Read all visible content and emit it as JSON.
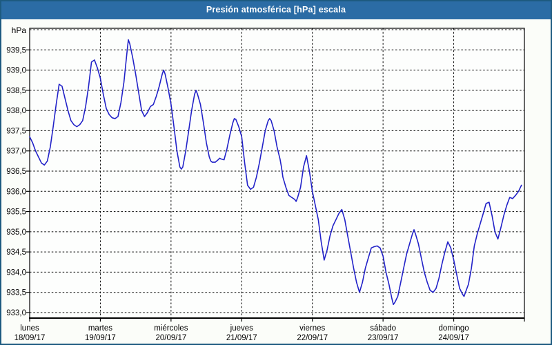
{
  "window": {
    "title": "Presión atmosférica [hPa] escala",
    "colors": {
      "title_bar": "#2B6CA5",
      "title_text": "#FFFFFF",
      "frame_border": "#1D5A80",
      "background": "#FBFDF9",
      "line": "#2222C8",
      "grid": "#000000",
      "axis_text": "#000000"
    }
  },
  "chart_data": {
    "type": "line",
    "title": "Presión atmosférica [hPa] escala",
    "unit_label": "hPa",
    "grid": "dashed",
    "legend": "none",
    "ylim": [
      933.0,
      940.0
    ],
    "yticks": [
      933.0,
      933.5,
      934.0,
      934.5,
      935.0,
      935.5,
      936.0,
      936.5,
      937.0,
      937.5,
      938.0,
      938.5,
      939.0,
      939.5
    ],
    "ytick_labels": [
      "933,0",
      "933,5",
      "934,0",
      "934,5",
      "935,0",
      "935,5",
      "936,0",
      "936,5",
      "937,0",
      "937,5",
      "938,0",
      "938,5",
      "939,0",
      "939,5"
    ],
    "x_hours_total": 168,
    "hours_per_day": 24,
    "x_axis_days": [
      {
        "label": "lunes",
        "date": "18/09/17"
      },
      {
        "label": "martes",
        "date": "19/09/17"
      },
      {
        "label": "miércoles",
        "date": "20/09/17"
      },
      {
        "label": "jueves",
        "date": "21/09/17"
      },
      {
        "label": "viernes",
        "date": "22/09/17"
      },
      {
        "label": "sábado",
        "date": "23/09/17"
      },
      {
        "label": "domingo",
        "date": "24/09/17"
      }
    ],
    "series": [
      {
        "name": "Presión atmosférica",
        "unit": "hPa",
        "points": [
          [
            0,
            937.35
          ],
          [
            1,
            937.2
          ],
          [
            2,
            937.0
          ],
          [
            3,
            936.85
          ],
          [
            4,
            936.7
          ],
          [
            5,
            936.65
          ],
          [
            6,
            936.75
          ],
          [
            7,
            937.1
          ],
          [
            8,
            937.6
          ],
          [
            9,
            938.15
          ],
          [
            10,
            938.65
          ],
          [
            11,
            938.6
          ],
          [
            12,
            938.3
          ],
          [
            13,
            938.0
          ],
          [
            14,
            937.75
          ],
          [
            15,
            937.65
          ],
          [
            16,
            937.6
          ],
          [
            17,
            937.65
          ],
          [
            18,
            937.75
          ],
          [
            19,
            938.1
          ],
          [
            20,
            938.6
          ],
          [
            21,
            939.2
          ],
          [
            22,
            939.25
          ],
          [
            23,
            939.05
          ],
          [
            24,
            938.8
          ],
          [
            25,
            938.4
          ],
          [
            26,
            938.05
          ],
          [
            27,
            937.9
          ],
          [
            28,
            937.82
          ],
          [
            29,
            937.8
          ],
          [
            30,
            937.85
          ],
          [
            31,
            938.2
          ],
          [
            32,
            938.7
          ],
          [
            33,
            939.4
          ],
          [
            33.5,
            939.75
          ],
          [
            34,
            939.65
          ],
          [
            35,
            939.3
          ],
          [
            36,
            938.9
          ],
          [
            37,
            938.45
          ],
          [
            38,
            938.0
          ],
          [
            39,
            937.85
          ],
          [
            40,
            937.95
          ],
          [
            41,
            938.1
          ],
          [
            42,
            938.15
          ],
          [
            43,
            938.35
          ],
          [
            44,
            938.6
          ],
          [
            45,
            938.9
          ],
          [
            45.5,
            939.0
          ],
          [
            46,
            938.9
          ],
          [
            47,
            938.55
          ],
          [
            48,
            938.15
          ],
          [
            49,
            937.6
          ],
          [
            50,
            937.0
          ],
          [
            51,
            936.6
          ],
          [
            51.5,
            936.55
          ],
          [
            52,
            936.6
          ],
          [
            53,
            937.0
          ],
          [
            54,
            937.5
          ],
          [
            55,
            938.0
          ],
          [
            56,
            938.4
          ],
          [
            56.5,
            938.5
          ],
          [
            57,
            938.4
          ],
          [
            58,
            938.15
          ],
          [
            59,
            937.7
          ],
          [
            60,
            937.2
          ],
          [
            61,
            936.85
          ],
          [
            61.5,
            936.75
          ],
          [
            62,
            936.72
          ],
          [
            63,
            936.72
          ],
          [
            64,
            936.78
          ],
          [
            64.5,
            936.82
          ],
          [
            65,
            936.8
          ],
          [
            66,
            936.78
          ],
          [
            67,
            937.05
          ],
          [
            68,
            937.4
          ],
          [
            69,
            937.7
          ],
          [
            69.5,
            937.8
          ],
          [
            70,
            937.78
          ],
          [
            71,
            937.6
          ],
          [
            72,
            937.35
          ],
          [
            73,
            936.7
          ],
          [
            74,
            936.15
          ],
          [
            75,
            936.05
          ],
          [
            76,
            936.1
          ],
          [
            77,
            936.35
          ],
          [
            78,
            936.7
          ],
          [
            79,
            937.1
          ],
          [
            80,
            937.5
          ],
          [
            81,
            937.75
          ],
          [
            81.5,
            937.8
          ],
          [
            82,
            937.75
          ],
          [
            83,
            937.5
          ],
          [
            84,
            937.1
          ],
          [
            85,
            936.8
          ],
          [
            85.5,
            936.6
          ],
          [
            86,
            936.35
          ],
          [
            87,
            936.1
          ],
          [
            88,
            935.9
          ],
          [
            89,
            935.85
          ],
          [
            90,
            935.8
          ],
          [
            90.5,
            935.75
          ],
          [
            91,
            935.85
          ],
          [
            92,
            936.1
          ],
          [
            93,
            936.6
          ],
          [
            94,
            936.88
          ],
          [
            95,
            936.5
          ],
          [
            96,
            936.0
          ],
          [
            97,
            935.65
          ],
          [
            98,
            935.3
          ],
          [
            99,
            934.75
          ],
          [
            100,
            934.3
          ],
          [
            101,
            934.55
          ],
          [
            102,
            934.9
          ],
          [
            103,
            935.15
          ],
          [
            104,
            935.3
          ],
          [
            105,
            935.45
          ],
          [
            106,
            935.55
          ],
          [
            107,
            935.3
          ],
          [
            108,
            934.9
          ],
          [
            109,
            934.5
          ],
          [
            110,
            934.1
          ],
          [
            111,
            933.75
          ],
          [
            112,
            933.5
          ],
          [
            113,
            933.75
          ],
          [
            114,
            934.1
          ],
          [
            115,
            934.35
          ],
          [
            116,
            934.6
          ],
          [
            117,
            934.63
          ],
          [
            118,
            934.65
          ],
          [
            119,
            934.6
          ],
          [
            120,
            934.4
          ],
          [
            121,
            934.0
          ],
          [
            122,
            933.7
          ],
          [
            123,
            933.35
          ],
          [
            123.5,
            933.2
          ],
          [
            124,
            933.25
          ],
          [
            125,
            933.4
          ],
          [
            126,
            933.75
          ],
          [
            127,
            934.1
          ],
          [
            128,
            934.45
          ],
          [
            129,
            934.7
          ],
          [
            130,
            934.95
          ],
          [
            130.5,
            935.05
          ],
          [
            131,
            934.95
          ],
          [
            132,
            934.7
          ],
          [
            133,
            934.35
          ],
          [
            134,
            934.0
          ],
          [
            135,
            933.75
          ],
          [
            136,
            933.55
          ],
          [
            137,
            933.5
          ],
          [
            138,
            933.6
          ],
          [
            139,
            933.85
          ],
          [
            140,
            934.2
          ],
          [
            141,
            934.5
          ],
          [
            142,
            934.75
          ],
          [
            143,
            934.6
          ],
          [
            144,
            934.3
          ],
          [
            145,
            933.95
          ],
          [
            146,
            933.6
          ],
          [
            147,
            933.45
          ],
          [
            147.5,
            933.4
          ],
          [
            148,
            933.5
          ],
          [
            149,
            933.7
          ],
          [
            150,
            934.1
          ],
          [
            151,
            934.65
          ],
          [
            152,
            934.95
          ],
          [
            153,
            935.2
          ],
          [
            154,
            935.45
          ],
          [
            155,
            935.7
          ],
          [
            156,
            935.73
          ],
          [
            157,
            935.4
          ],
          [
            158,
            935.0
          ],
          [
            159,
            934.82
          ],
          [
            160,
            935.1
          ],
          [
            161,
            935.4
          ],
          [
            162,
            935.65
          ],
          [
            163,
            935.85
          ],
          [
            164,
            935.82
          ],
          [
            165,
            935.9
          ],
          [
            166,
            936.0
          ],
          [
            167,
            936.15
          ]
        ]
      }
    ]
  }
}
